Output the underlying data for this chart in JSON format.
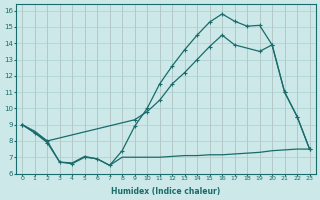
{
  "xlabel": "Humidex (Indice chaleur)",
  "ylabel": "",
  "xlim": [
    -0.5,
    23.5
  ],
  "ylim": [
    6,
    16.4
  ],
  "yticks": [
    6,
    7,
    8,
    9,
    10,
    11,
    12,
    13,
    14,
    15,
    16
  ],
  "xticks": [
    0,
    1,
    2,
    3,
    4,
    5,
    6,
    7,
    8,
    9,
    10,
    11,
    12,
    13,
    14,
    15,
    16,
    17,
    18,
    19,
    20,
    21,
    22,
    23
  ],
  "bg_color": "#cce8e8",
  "line_color": "#1a6b6b",
  "grid_color": "#aad0d0",
  "line1_x": [
    0,
    1,
    2,
    3,
    4,
    5,
    6,
    7,
    8,
    9,
    10,
    11,
    12,
    13,
    14,
    15,
    16,
    17,
    18,
    19,
    20,
    21,
    22,
    23
  ],
  "line1_y": [
    9.0,
    8.5,
    7.9,
    6.7,
    6.6,
    7.0,
    6.9,
    6.5,
    7.4,
    8.9,
    10.0,
    11.5,
    12.6,
    13.6,
    14.5,
    15.3,
    15.8,
    15.35,
    15.05,
    15.1,
    13.9,
    11.0,
    9.5,
    7.5
  ],
  "line2_x": [
    0,
    2,
    9,
    10,
    11,
    12,
    13,
    14,
    15,
    16,
    17,
    19,
    20,
    21,
    22,
    23
  ],
  "line2_y": [
    9.0,
    8.0,
    9.3,
    9.8,
    10.5,
    11.5,
    12.2,
    13.0,
    13.8,
    14.5,
    13.9,
    13.5,
    13.9,
    11.0,
    9.5,
    7.5
  ],
  "line3_x": [
    0,
    1,
    2,
    3,
    4,
    5,
    6,
    7,
    8,
    9,
    10,
    11,
    12,
    13,
    14,
    15,
    16,
    17,
    18,
    19,
    20,
    21,
    22,
    23
  ],
  "line3_y": [
    9.0,
    8.6,
    8.0,
    6.7,
    6.65,
    7.05,
    6.9,
    6.5,
    7.0,
    7.0,
    7.0,
    7.0,
    7.05,
    7.1,
    7.1,
    7.15,
    7.15,
    7.2,
    7.25,
    7.3,
    7.4,
    7.45,
    7.5,
    7.5
  ]
}
